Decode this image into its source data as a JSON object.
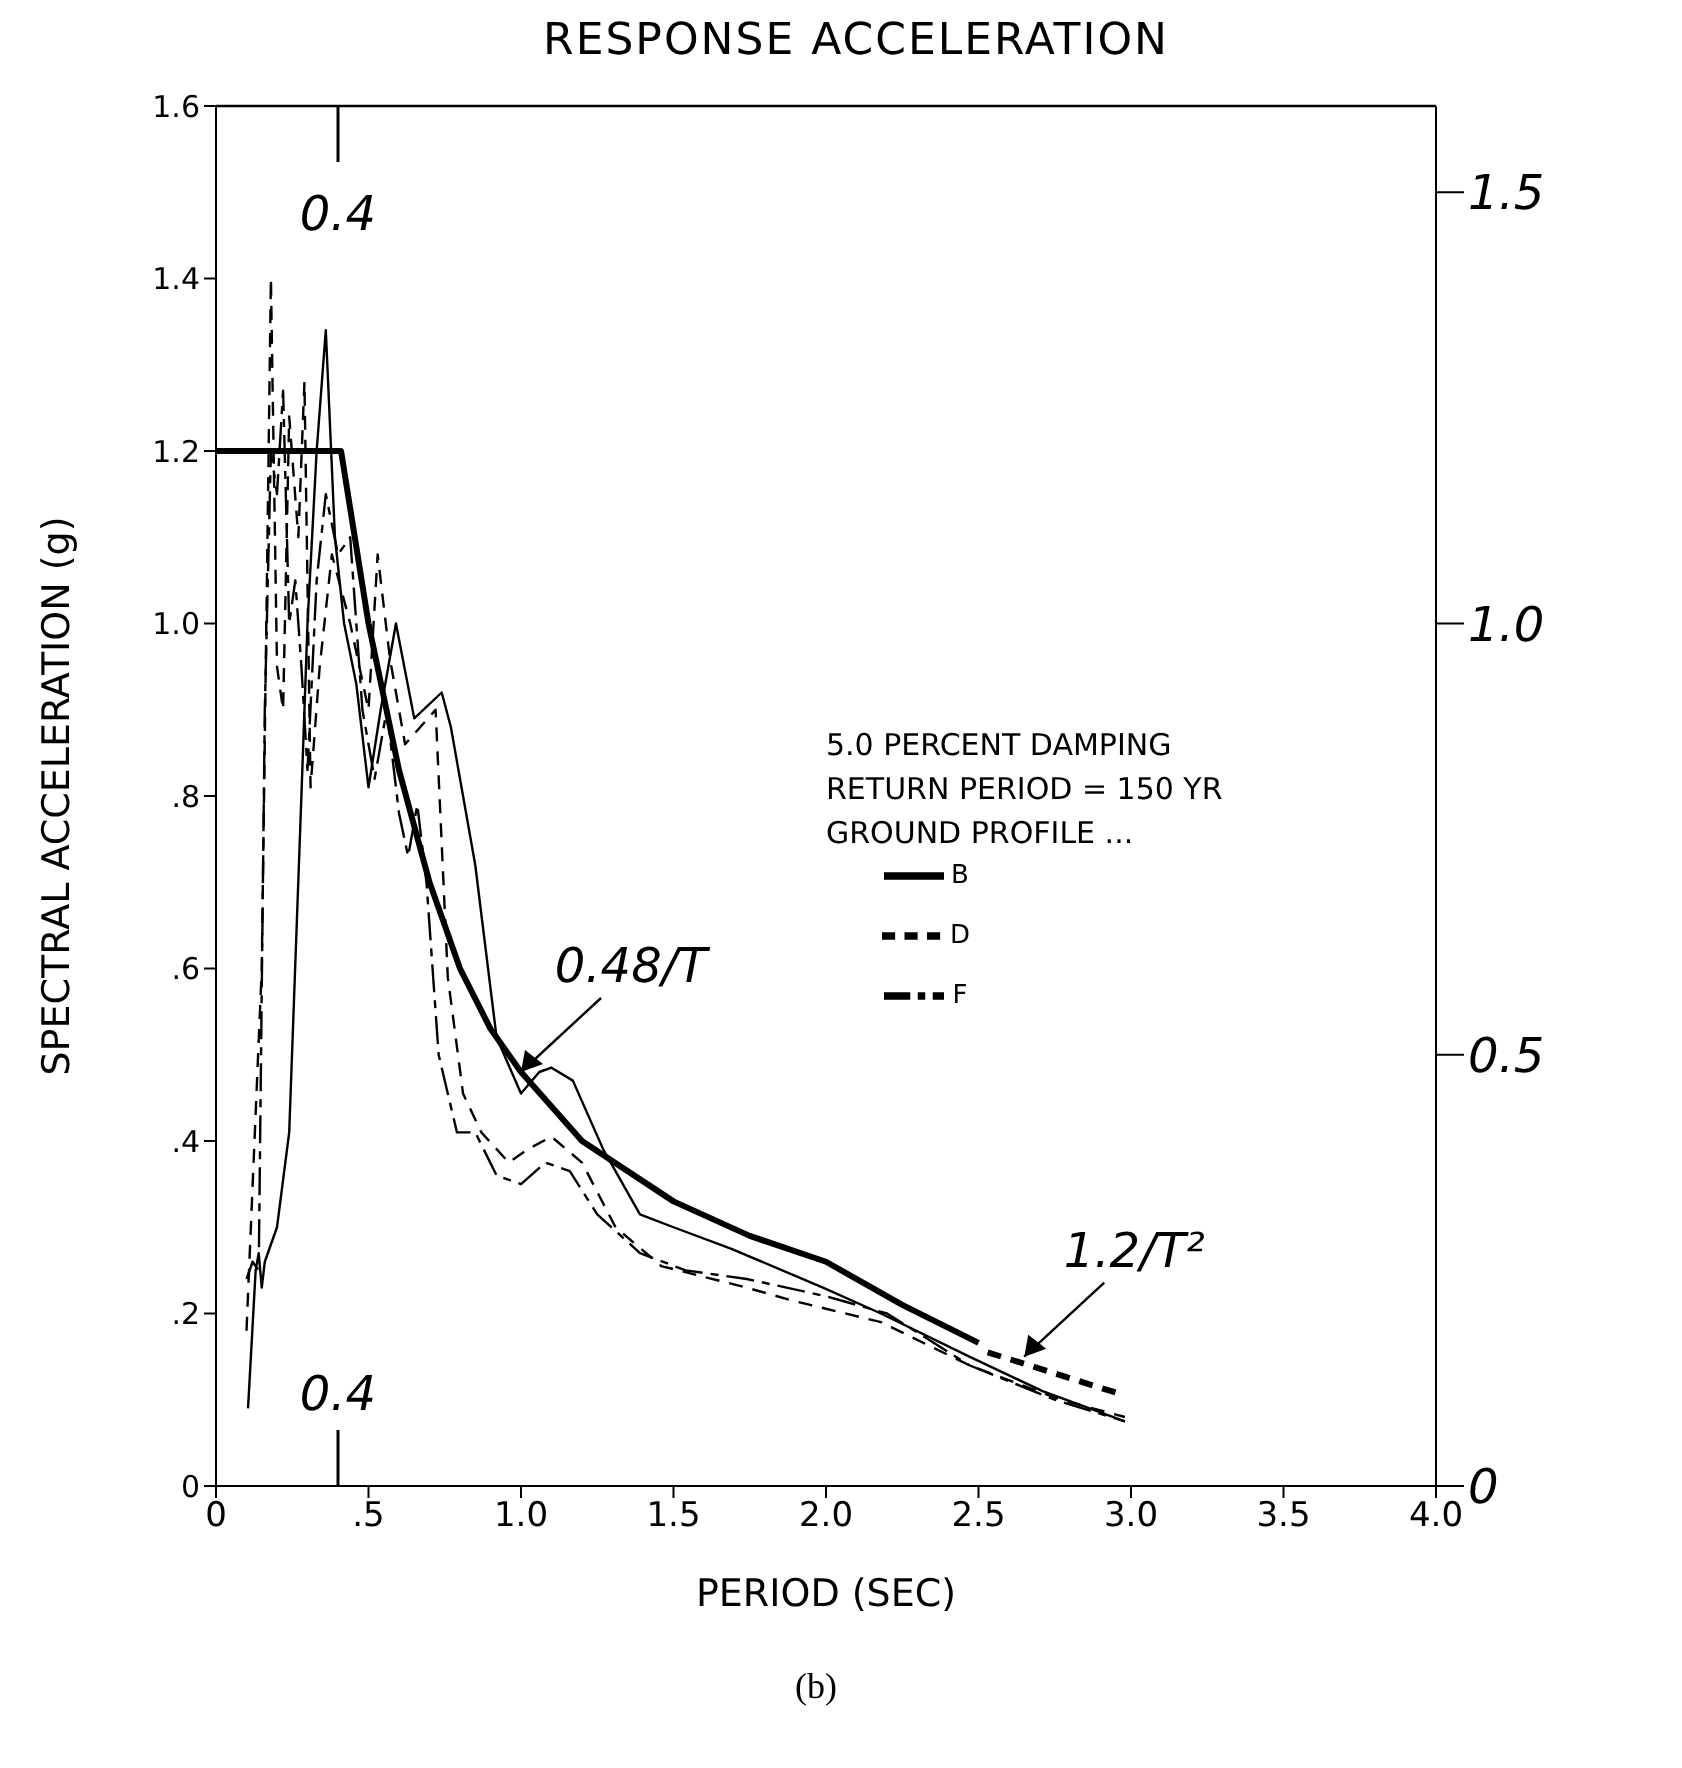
{
  "chart_data": {
    "type": "line",
    "title": "RESPONSE ACCELERATION",
    "xlabel": "PERIOD (SEC)",
    "ylabel": "SPECTRAL ACCELERATION (g)",
    "legend_title": "GROUND PROFILE ...",
    "legend": "center",
    "xlim": [
      0,
      4
    ],
    "xticks": [
      0,
      {
        "value": 0.5,
        "label": ".5"
      },
      {
        "value": 1,
        "label": "1.0"
      },
      {
        "value": 1.5,
        "label": "1.5"
      },
      {
        "value": 2,
        "label": "2.0"
      },
      {
        "value": 2.5,
        "label": "2.5"
      },
      {
        "value": 3,
        "label": "3.0"
      },
      {
        "value": 3.5,
        "label": "3.5"
      },
      {
        "value": 4,
        "label": "4.0"
      }
    ],
    "ylim": [
      0,
      1.6
    ],
    "yticks": [
      0,
      {
        "value": 0.2,
        "label": ".2"
      },
      {
        "value": 0.4,
        "label": ".4"
      },
      {
        "value": 0.6,
        "label": ".6"
      },
      {
        "value": 0.8,
        "label": ".8"
      },
      {
        "value": 1,
        "label": "1.0"
      },
      {
        "value": 1.2,
        "label": "1.2"
      },
      {
        "value": 1.4,
        "label": "1.4"
      },
      {
        "value": 1.6,
        "label": "1.6"
      }
    ],
    "y2lim": [
      0,
      1.6
    ],
    "y2ticks": [
      0,
      {
        "value": 0.5,
        "label": "0.5"
      },
      {
        "value": 1,
        "label": "1.0"
      },
      {
        "value": 1.5,
        "label": "1.5"
      }
    ],
    "annotations": [
      "0.4",
      "0.4",
      "5.0 PERCENT DAMPING",
      "RETURN PERIOD = 150 YR",
      "(b)",
      {
        "text": "0.48/T",
        "x": 1.0,
        "y": 0.48
      },
      {
        "text": "1.2/T²",
        "x": 2.65,
        "y": 0.15
      }
    ],
    "series": [
      {
        "name": "B",
        "color": "#000000",
        "line_style": "solid",
        "x": [
          0.105,
          0.13,
          0.14,
          0.15,
          0.16,
          0.2,
          0.24,
          0.28,
          0.3,
          0.33,
          0.36,
          0.39,
          0.42,
          0.46,
          0.5,
          0.54,
          0.59,
          0.65,
          0.74,
          0.77,
          0.85,
          0.92,
          1.0,
          1.06,
          1.1,
          1.17,
          1.27,
          1.39,
          1.5,
          1.69,
          1.99,
          2.18,
          2.47,
          2.71,
          2.98
        ],
        "values": [
          0.09,
          0.25,
          0.27,
          0.23,
          0.26,
          0.3,
          0.41,
          0.8,
          1.0,
          1.2,
          1.34,
          1.1,
          1.0,
          0.93,
          0.81,
          0.9,
          1.0,
          0.89,
          0.92,
          0.88,
          0.72,
          0.52,
          0.455,
          0.48,
          0.485,
          0.47,
          0.39,
          0.315,
          0.3,
          0.275,
          0.23,
          0.2,
          0.15,
          0.11,
          0.075
        ]
      },
      {
        "name": "D",
        "color": "#000000",
        "line_style": "dashed",
        "x": [
          0.1,
          0.15,
          0.18,
          0.2,
          0.22,
          0.24,
          0.27,
          0.29,
          0.31,
          0.34,
          0.38,
          0.44,
          0.5,
          0.53,
          0.57,
          0.62,
          0.67,
          0.72,
          0.76,
          0.81,
          0.87,
          0.96,
          1.02,
          1.1,
          1.2,
          1.31,
          1.46,
          1.74,
          1.89,
          2.18,
          2.47,
          2.77,
          2.98
        ],
        "values": [
          0.18,
          0.6,
          1.4,
          0.95,
          0.9,
          1.24,
          1.1,
          1.28,
          0.81,
          0.95,
          1.08,
          1.0,
          0.9,
          1.08,
          0.96,
          0.86,
          0.88,
          0.9,
          0.59,
          0.455,
          0.41,
          0.375,
          0.39,
          0.405,
          0.375,
          0.3,
          0.255,
          0.23,
          0.215,
          0.19,
          0.14,
          0.1,
          0.08
        ]
      },
      {
        "name": "F",
        "color": "#000000",
        "line_style": "dashdot",
        "x": [
          0.1,
          0.12,
          0.14,
          0.16,
          0.18,
          0.2,
          0.22,
          0.24,
          0.26,
          0.28,
          0.3,
          0.33,
          0.36,
          0.4,
          0.44,
          0.48,
          0.52,
          0.56,
          0.6,
          0.63,
          0.66,
          0.69,
          0.73,
          0.79,
          0.85,
          0.92,
          1.0,
          1.08,
          1.16,
          1.25,
          1.39,
          1.54,
          1.74,
          2.0,
          2.2,
          2.47,
          2.75,
          2.98
        ],
        "values": [
          0.24,
          0.26,
          0.25,
          0.9,
          1.2,
          1.15,
          1.27,
          1.0,
          1.05,
          0.95,
          0.83,
          1.05,
          1.15,
          1.08,
          1.1,
          0.9,
          0.82,
          0.9,
          0.78,
          0.73,
          0.79,
          0.7,
          0.5,
          0.41,
          0.41,
          0.36,
          0.35,
          0.375,
          0.365,
          0.315,
          0.27,
          0.25,
          0.24,
          0.22,
          0.2,
          0.14,
          0.1,
          0.075
        ]
      },
      {
        "color": "#000000",
        "line_style": "solid",
        "x": [
          0,
          0.41,
          0.5,
          0.6,
          0.7,
          0.8,
          0.9,
          1.0,
          1.2,
          1.5,
          1.75,
          2.0,
          2.25,
          2.5
        ],
        "values": [
          1.2,
          1.2,
          1.0,
          0.83,
          0.7,
          0.6,
          0.53,
          0.48,
          0.4,
          0.33,
          0.29,
          0.26,
          0.21,
          0.166
        ]
      },
      {
        "color": "#000000",
        "line_style": "dashed",
        "x": [
          2.53,
          2.98
        ],
        "values": [
          0.155,
          0.105
        ]
      }
    ]
  }
}
